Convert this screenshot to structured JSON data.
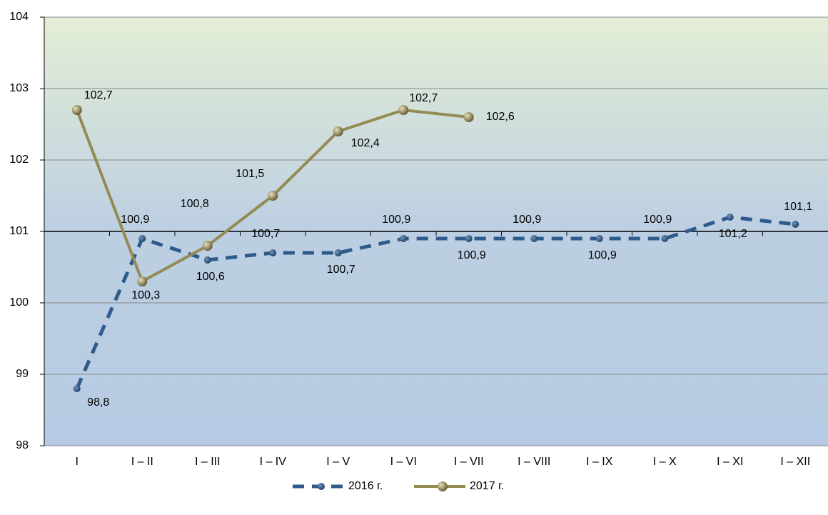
{
  "chart_data": {
    "type": "line",
    "categories": [
      "I",
      "I – II",
      "I – III",
      "I – IV",
      "I – V",
      "I – VI",
      "I – VII",
      "I – VIII",
      "I – IX",
      "I – X",
      "I – XI",
      "I – XII"
    ],
    "series": [
      {
        "name": "2016 г.",
        "color": "#2e5b8c",
        "values": [
          98.8,
          100.9,
          100.6,
          100.7,
          100.7,
          100.9,
          100.9,
          100.9,
          100.9,
          100.9,
          101.2,
          101.1
        ],
        "value_labels": [
          "98,8",
          "100,9",
          "100,6",
          "100,7",
          "100,7",
          "100,9",
          "100,9",
          "100,9",
          "100,9",
          "100,9",
          "101,2",
          "101,1"
        ]
      },
      {
        "name": "2017 г.",
        "color": "#948a54",
        "values": [
          102.7,
          100.3,
          100.8,
          101.5,
          102.4,
          102.7,
          102.6,
          null,
          null,
          null,
          null,
          null
        ],
        "value_labels": [
          "102,7",
          "100,3",
          "100,8",
          "101,5",
          "102,4",
          "102,7",
          "102,6",
          null,
          null,
          null,
          null,
          null
        ]
      }
    ],
    "ylim": [
      98,
      104
    ],
    "yticks": [
      98,
      99,
      100,
      101,
      102,
      103,
      104
    ],
    "grid": true
  }
}
